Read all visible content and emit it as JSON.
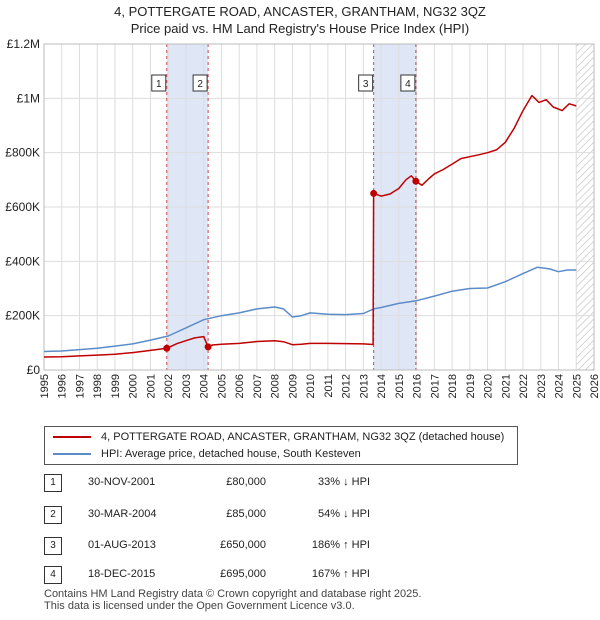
{
  "title": {
    "line1": "4, POTTERGATE ROAD, ANCASTER, GRANTHAM, NG32 3QZ",
    "line2": "Price paid vs. HM Land Registry's House Price Index (HPI)"
  },
  "colors": {
    "price_line": "#c00000",
    "hpi_line": "#5b8cc8",
    "shade": "#dfe7f7",
    "hatch": "#c8c8c8",
    "grid": "#dddddd",
    "vline": "#c00000"
  },
  "chart_data": {
    "type": "line",
    "title": "4, POTTERGATE ROAD, ANCASTER, GRANTHAM, NG32 3QZ — Price paid vs. HM Land Registry's House Price Index (HPI)",
    "xlim": [
      1995.0,
      2026.0
    ],
    "ylim": [
      0,
      1200000
    ],
    "x_ticks": [
      1995,
      1996,
      1997,
      1998,
      1999,
      2000,
      2001,
      2002,
      2003,
      2004,
      2005,
      2006,
      2007,
      2008,
      2009,
      2010,
      2011,
      2012,
      2013,
      2014,
      2015,
      2016,
      2017,
      2018,
      2019,
      2020,
      2021,
      2022,
      2023,
      2024,
      2025,
      2026
    ],
    "y_ticks": [
      {
        "value": 0,
        "label": "£0"
      },
      {
        "value": 200000,
        "label": "£200K"
      },
      {
        "value": 400000,
        "label": "£400K"
      },
      {
        "value": 600000,
        "label": "£600K"
      },
      {
        "value": 800000,
        "label": "£800K"
      },
      {
        "value": 1000000,
        "label": "£1M"
      },
      {
        "value": 1200000,
        "label": "£1.2M"
      }
    ],
    "grid": true,
    "shaded_ranges": [
      [
        2001.92,
        2004.25
      ],
      [
        2013.58,
        2015.96
      ]
    ],
    "hatch_from": 2025.0,
    "series": [
      {
        "name": "4, POTTERGATE ROAD, ANCASTER, GRANTHAM, NG32 3QZ (detached house)",
        "points": [
          [
            1995.0,
            48000
          ],
          [
            1996.0,
            49000
          ],
          [
            1997.0,
            52000
          ],
          [
            1998.0,
            55000
          ],
          [
            1999.0,
            58000
          ],
          [
            2000.0,
            64000
          ],
          [
            2001.0,
            72000
          ],
          [
            2001.92,
            80000
          ],
          [
            2002.5,
            97000
          ],
          [
            2003.0,
            108000
          ],
          [
            2003.5,
            118000
          ],
          [
            2004.0,
            123000
          ],
          [
            2004.25,
            85000
          ],
          [
            2004.5,
            92000
          ],
          [
            2005.0,
            95000
          ],
          [
            2006.0,
            98000
          ],
          [
            2007.0,
            105000
          ],
          [
            2008.0,
            108000
          ],
          [
            2008.5,
            104000
          ],
          [
            2009.0,
            93000
          ],
          [
            2009.5,
            95000
          ],
          [
            2010.0,
            98000
          ],
          [
            2011.0,
            98000
          ],
          [
            2012.0,
            97000
          ],
          [
            2013.0,
            96000
          ],
          [
            2013.55,
            94000
          ],
          [
            2013.58,
            650000
          ],
          [
            2014.0,
            640000
          ],
          [
            2014.5,
            648000
          ],
          [
            2015.0,
            668000
          ],
          [
            2015.4,
            700000
          ],
          [
            2015.7,
            715000
          ],
          [
            2015.96,
            695000
          ],
          [
            2016.3,
            680000
          ],
          [
            2016.7,
            705000
          ],
          [
            2017.0,
            722000
          ],
          [
            2017.5,
            738000
          ],
          [
            2018.0,
            758000
          ],
          [
            2018.5,
            778000
          ],
          [
            2019.0,
            785000
          ],
          [
            2019.5,
            792000
          ],
          [
            2020.0,
            800000
          ],
          [
            2020.5,
            810000
          ],
          [
            2021.0,
            838000
          ],
          [
            2021.5,
            890000
          ],
          [
            2022.0,
            955000
          ],
          [
            2022.5,
            1010000
          ],
          [
            2022.9,
            985000
          ],
          [
            2023.3,
            995000
          ],
          [
            2023.7,
            968000
          ],
          [
            2024.2,
            955000
          ],
          [
            2024.6,
            980000
          ],
          [
            2025.0,
            972000
          ]
        ]
      },
      {
        "name": "HPI: Average price, detached house, South Kesteven",
        "points": [
          [
            1995.0,
            68000
          ],
          [
            1996.0,
            70000
          ],
          [
            1997.0,
            75000
          ],
          [
            1998.0,
            80000
          ],
          [
            1999.0,
            88000
          ],
          [
            2000.0,
            96000
          ],
          [
            2001.0,
            110000
          ],
          [
            2002.0,
            125000
          ],
          [
            2003.0,
            155000
          ],
          [
            2004.0,
            185000
          ],
          [
            2005.0,
            200000
          ],
          [
            2006.0,
            210000
          ],
          [
            2007.0,
            225000
          ],
          [
            2008.0,
            232000
          ],
          [
            2008.5,
            225000
          ],
          [
            2009.0,
            195000
          ],
          [
            2009.5,
            200000
          ],
          [
            2010.0,
            210000
          ],
          [
            2011.0,
            205000
          ],
          [
            2012.0,
            204000
          ],
          [
            2013.0,
            208000
          ],
          [
            2013.58,
            225000
          ],
          [
            2014.0,
            230000
          ],
          [
            2015.0,
            245000
          ],
          [
            2016.0,
            255000
          ],
          [
            2017.0,
            272000
          ],
          [
            2018.0,
            290000
          ],
          [
            2019.0,
            300000
          ],
          [
            2020.0,
            302000
          ],
          [
            2021.0,
            325000
          ],
          [
            2022.0,
            355000
          ],
          [
            2022.8,
            378000
          ],
          [
            2023.5,
            372000
          ],
          [
            2024.0,
            362000
          ],
          [
            2024.5,
            368000
          ],
          [
            2025.0,
            368000
          ]
        ]
      }
    ],
    "sales": [
      {
        "num": "1",
        "x": 2001.92,
        "value": 80000
      },
      {
        "num": "2",
        "x": 2004.25,
        "value": 85000
      },
      {
        "num": "3",
        "x": 2013.58,
        "value": 650000
      },
      {
        "num": "4",
        "x": 2015.96,
        "value": 695000
      }
    ]
  },
  "legend": {
    "items": [
      "4, POTTERGATE ROAD, ANCASTER, GRANTHAM, NG32 3QZ (detached house)",
      "HPI: Average price, detached house, South Kesteven"
    ]
  },
  "transactions": [
    {
      "num": "1",
      "date": "30-NOV-2001",
      "price": "£80,000",
      "hpi": "33% ↓ HPI"
    },
    {
      "num": "2",
      "date": "30-MAR-2004",
      "price": "£85,000",
      "hpi": "54% ↓ HPI"
    },
    {
      "num": "3",
      "date": "01-AUG-2013",
      "price": "£650,000",
      "hpi": "186% ↑ HPI"
    },
    {
      "num": "4",
      "date": "18-DEC-2015",
      "price": "£695,000",
      "hpi": "167% ↑ HPI"
    }
  ],
  "footer": {
    "line1": "Contains HM Land Registry data © Crown copyright and database right 2025.",
    "line2": "This data is licensed under the Open Government Licence v3.0."
  }
}
